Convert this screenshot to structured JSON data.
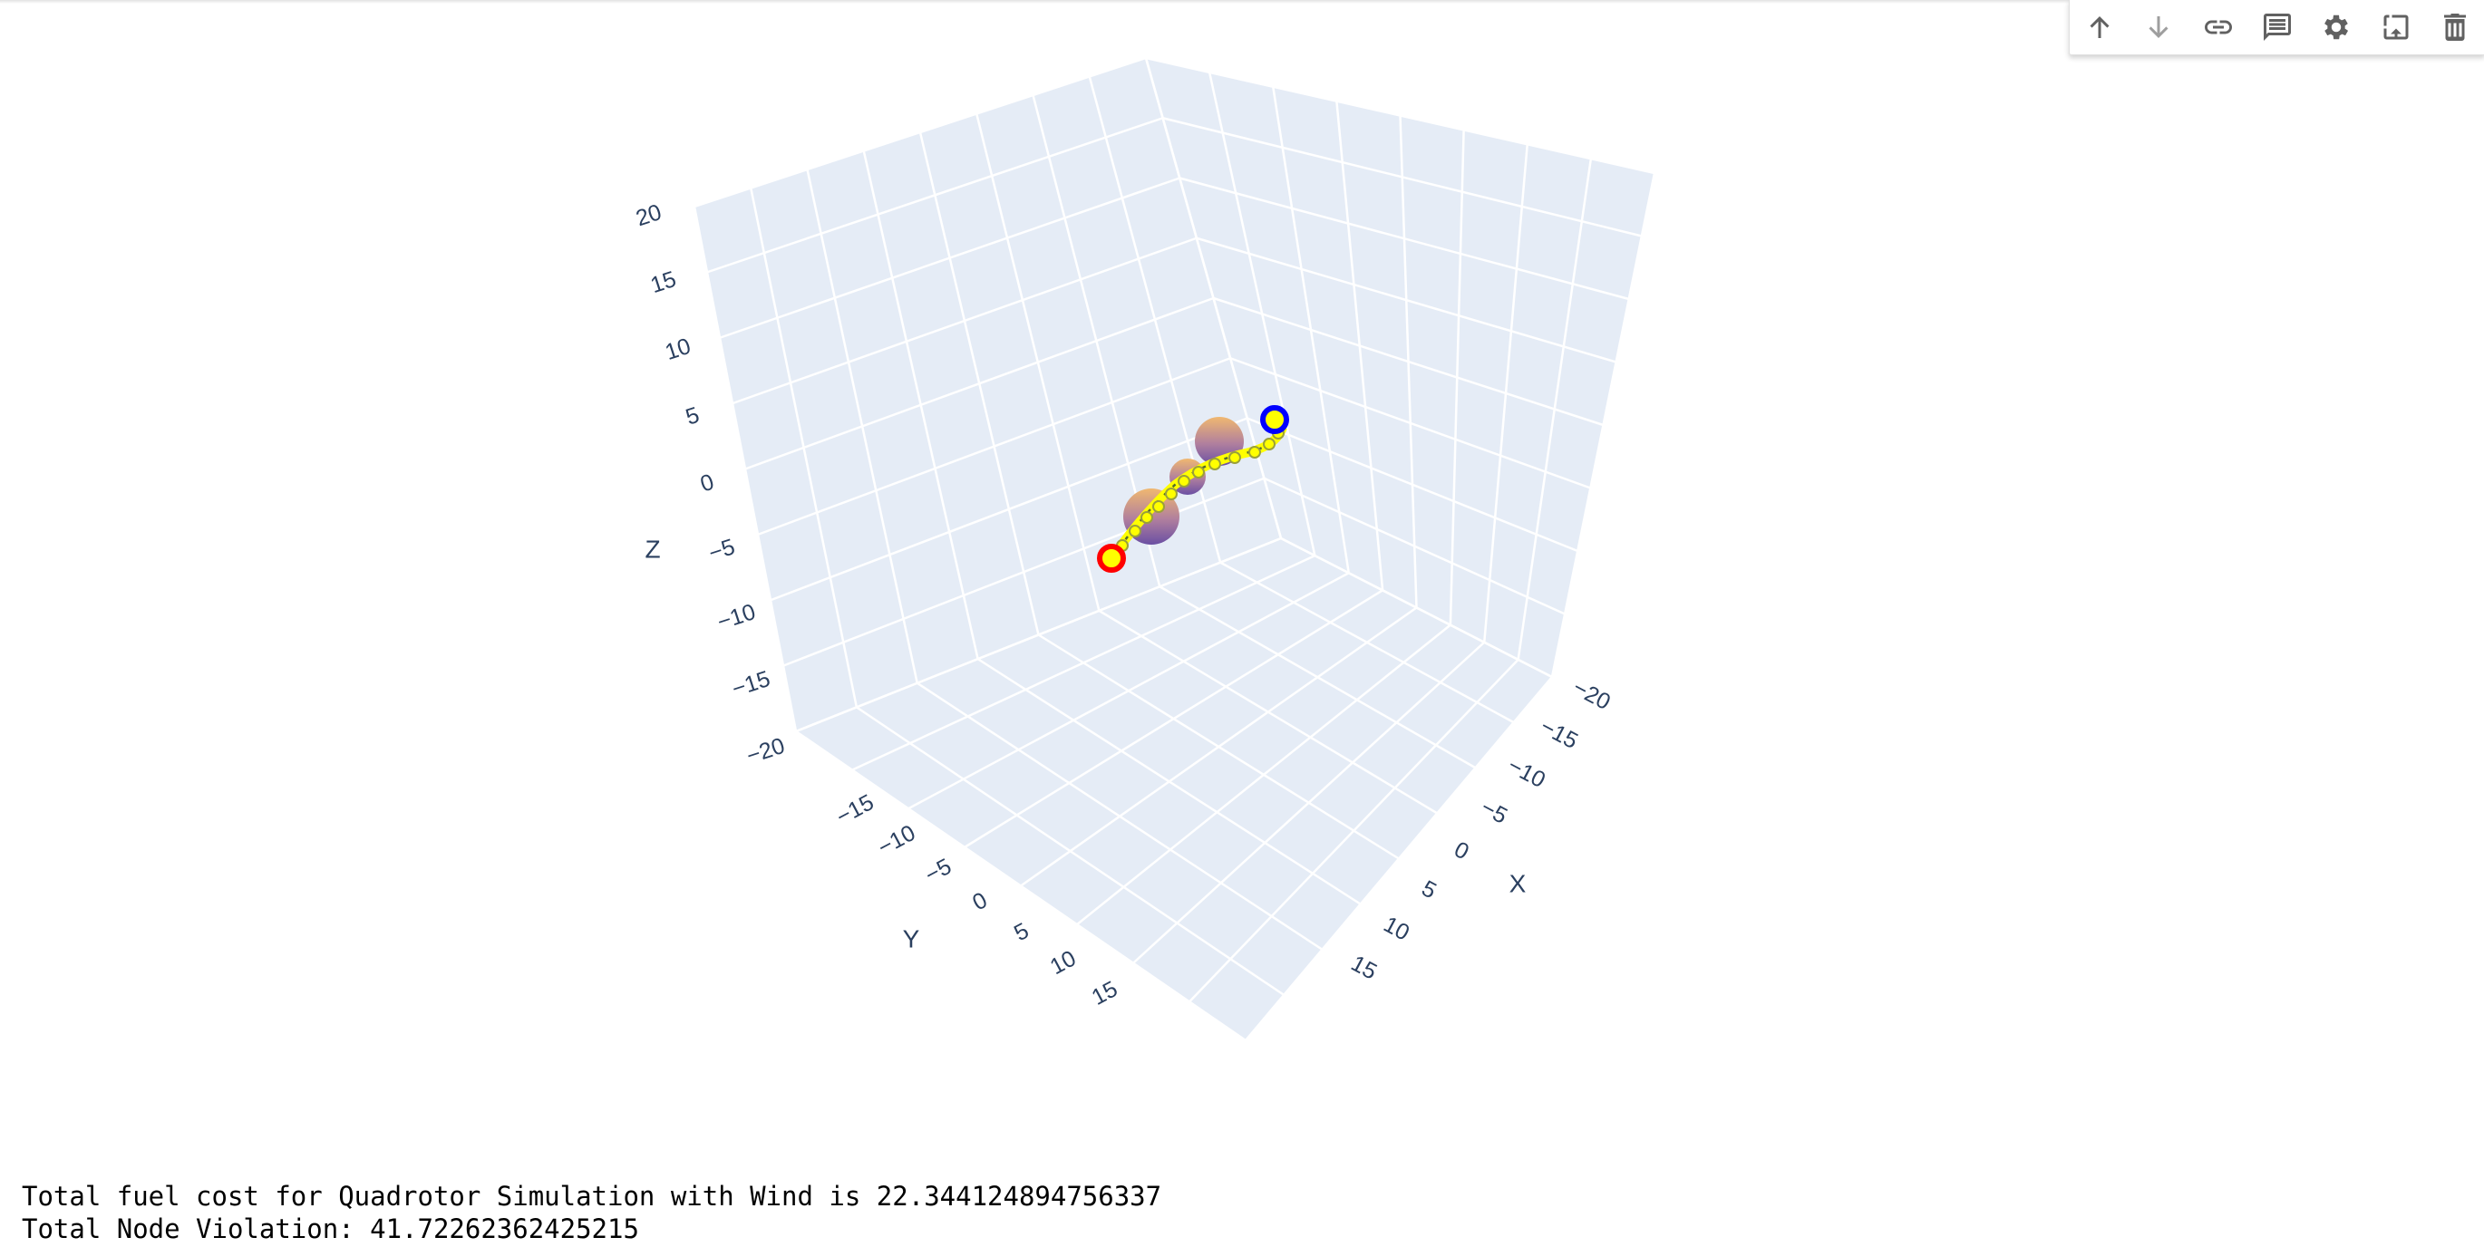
{
  "toolbar": {
    "items": [
      {
        "name": "move-up",
        "icon": "arrow-up-icon"
      },
      {
        "name": "move-down",
        "icon": "arrow-down-icon"
      },
      {
        "name": "link",
        "icon": "link-icon"
      },
      {
        "name": "comment",
        "icon": "comment-icon"
      },
      {
        "name": "settings",
        "icon": "gear-icon"
      },
      {
        "name": "mirror-output",
        "icon": "open-in-tab-icon"
      },
      {
        "name": "delete",
        "icon": "trash-icon"
      }
    ]
  },
  "chart_data": {
    "type": "scatter3d",
    "axes": {
      "x": {
        "title": "X",
        "range": [
          -20,
          20
        ],
        "ticks": [
          "−20",
          "−15",
          "−10",
          "−5",
          "0",
          "5",
          "10",
          "15"
        ]
      },
      "y": {
        "title": "Y",
        "range": [
          -20,
          20
        ],
        "ticks": [
          "−15",
          "−10",
          "−5",
          "0",
          "5",
          "10",
          "15"
        ]
      },
      "z": {
        "title": "Z",
        "range": [
          -20,
          20
        ],
        "ticks": [
          "20",
          "15",
          "10",
          "5",
          "0",
          "−5",
          "−10",
          "−15",
          "−20"
        ]
      }
    },
    "grid": true,
    "background": "#e5ecf6",
    "trajectory": {
      "color": "#ffff00",
      "start_marker": {
        "x": 0,
        "y": 0,
        "z": 0,
        "color": "#ff0000"
      },
      "goal_marker": {
        "x": -10,
        "y": -10,
        "z": 10,
        "color": "#0000ff"
      }
    },
    "obstacles": [
      {
        "name": "sphere-1",
        "radius": 3
      },
      {
        "name": "sphere-2",
        "radius": 2
      },
      {
        "name": "sphere-3",
        "radius": 3
      }
    ],
    "colors": {
      "sphere_top": "#f0b870",
      "sphere_bottom": "#6a4fa3",
      "grid": "#ffffff",
      "axis_text": "#2a3f5f"
    }
  },
  "output": {
    "line1": "Total fuel cost for Quadrotor Simulation with Wind is 22.344124894756337",
    "line2": "Total Node Violation: 41.72262362425215"
  }
}
